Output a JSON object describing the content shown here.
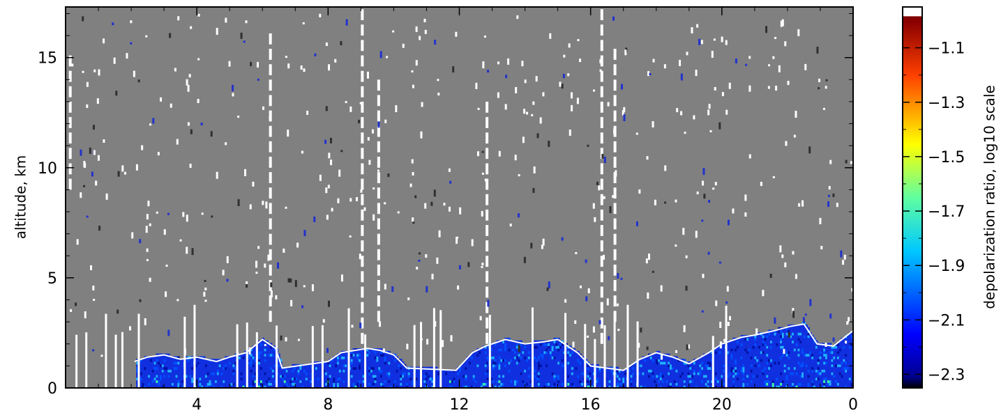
{
  "chart_data": {
    "type": "heatmap",
    "title": "",
    "xlabel": "",
    "ylabel": "altitude, km",
    "x_ticks": [
      4,
      8,
      12,
      16,
      20,
      0
    ],
    "x_tick_labels": [
      "4",
      "8",
      "12",
      "16",
      "20",
      "0"
    ],
    "x_range": [
      0,
      24
    ],
    "y_ticks": [
      0,
      5,
      10,
      15
    ],
    "y_tick_labels": [
      "0",
      "5",
      "10",
      "15"
    ],
    "ylim": [
      0,
      17.3
    ],
    "grid": false,
    "background_color": "#808080",
    "colorbar": {
      "label": "depolarization ratio, log10 scale",
      "ticks": [
        -1.1,
        -1.3,
        -1.5,
        -1.7,
        -1.9,
        -2.1,
        -2.3
      ],
      "tick_labels": [
        "−1.1",
        "−1.3",
        "−1.5",
        "−1.7",
        "−1.9",
        "−2.1",
        "−2.3"
      ],
      "range": [
        -2.35,
        -0.95
      ],
      "colormap": "jet",
      "over_color": "#ffffff"
    },
    "low_layer_top_km": [
      [
        2.1,
        1.2
      ],
      [
        2.5,
        1.4
      ],
      [
        3.0,
        1.5
      ],
      [
        3.5,
        1.3
      ],
      [
        4.0,
        1.4
      ],
      [
        4.6,
        1.2
      ],
      [
        5.0,
        1.4
      ],
      [
        5.5,
        1.6
      ],
      [
        6.0,
        2.2
      ],
      [
        6.4,
        1.8
      ],
      [
        6.6,
        0.9
      ],
      [
        8.0,
        1.2
      ],
      [
        8.4,
        1.6
      ],
      [
        8.8,
        1.7
      ],
      [
        9.2,
        1.8
      ],
      [
        9.6,
        1.7
      ],
      [
        10.0,
        1.5
      ],
      [
        10.4,
        0.9
      ],
      [
        11.9,
        0.8
      ],
      [
        12.4,
        1.6
      ],
      [
        12.8,
        1.9
      ],
      [
        13.4,
        2.2
      ],
      [
        14.0,
        2.0
      ],
      [
        14.6,
        2.1
      ],
      [
        15.0,
        2.2
      ],
      [
        15.6,
        1.6
      ],
      [
        16.0,
        1.0
      ],
      [
        17.0,
        0.8
      ],
      [
        17.5,
        1.3
      ],
      [
        18.0,
        1.6
      ],
      [
        18.5,
        1.4
      ],
      [
        19.0,
        1.1
      ],
      [
        19.6,
        1.6
      ],
      [
        20.0,
        2.0
      ],
      [
        20.6,
        2.3
      ],
      [
        21.0,
        2.4
      ],
      [
        21.6,
        2.6
      ],
      [
        22.1,
        2.8
      ],
      [
        22.5,
        2.9
      ],
      [
        22.9,
        2.0
      ],
      [
        23.4,
        1.9
      ],
      [
        24.0,
        2.6
      ]
    ]
  }
}
